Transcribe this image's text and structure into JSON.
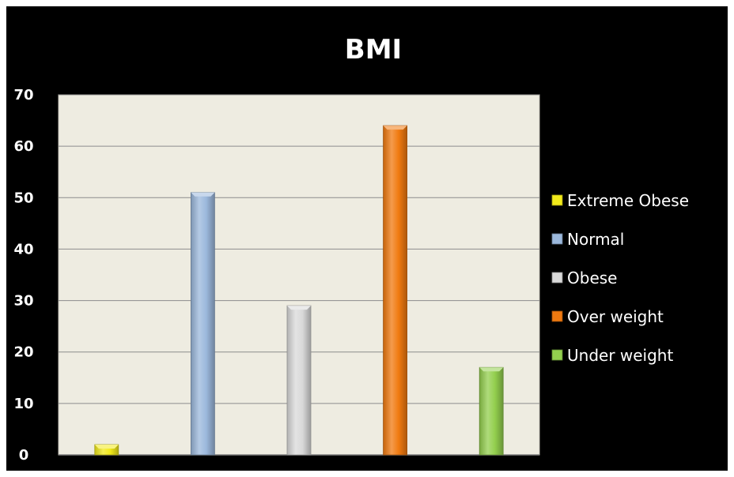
{
  "chart_data": {
    "type": "bar",
    "title": "BMI",
    "xlabel": "",
    "ylabel": "",
    "ylim": [
      0,
      70
    ],
    "yticks": [
      0,
      10,
      20,
      30,
      40,
      50,
      60,
      70
    ],
    "grid": true,
    "legend_position": "right",
    "categories": [
      "Extreme Obese",
      "Normal",
      "Obese",
      "Over weight",
      "Under weight"
    ],
    "values": [
      2,
      51,
      29,
      64,
      17
    ],
    "colors": [
      "#f2ea1a",
      "#9bb8dc",
      "#d9d9d9",
      "#f07a10",
      "#93cf4e"
    ],
    "background": "#000000",
    "plot_background": "#eeece1"
  }
}
